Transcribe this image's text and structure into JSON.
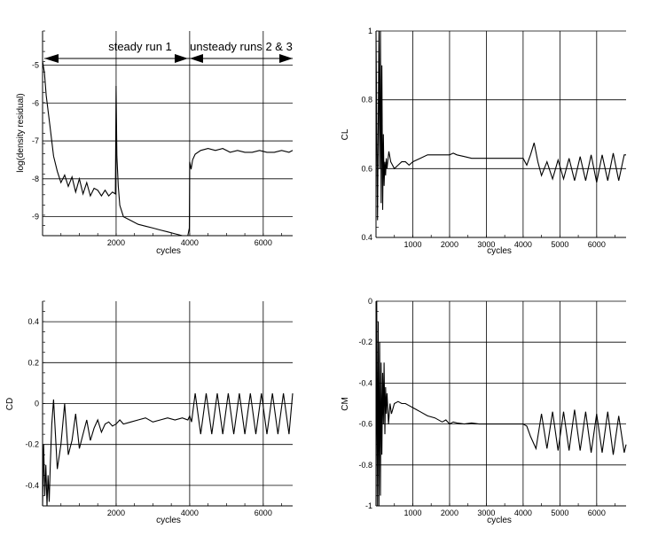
{
  "chart_data": [
    {
      "id": "residual",
      "type": "line",
      "xlabel": "cycles",
      "ylabel": "log(density residual)",
      "xlim": [
        0,
        6800
      ],
      "ylim": [
        -9.5,
        -4.1
      ],
      "xticks": [
        2000,
        4000,
        6000
      ],
      "yticks": [
        -5,
        -6,
        -7,
        -8,
        -9
      ],
      "grid": true,
      "annotations": [
        "steady run 1",
        "unsteady runs 2 & 3"
      ],
      "series": [
        {
          "x": [
            0,
            50,
            100,
            200,
            300,
            400,
            500,
            600,
            700,
            800,
            900,
            1000,
            1100,
            1200,
            1300,
            1400,
            1500,
            1600,
            1700,
            1800,
            1900,
            1980,
            2000,
            2020,
            2060,
            2100,
            2200,
            2400,
            2600,
            2800,
            3000,
            3200,
            3400,
            3600,
            3800,
            3950,
            3990,
            4000,
            4040,
            4080,
            4150,
            4300,
            4500,
            4700,
            4900,
            5100,
            5300,
            5500,
            5700,
            5900,
            6100,
            6300,
            6500,
            6700,
            6800
          ],
          "y": [
            -4.9,
            -5.2,
            -5.8,
            -6.6,
            -7.4,
            -7.8,
            -8.1,
            -7.9,
            -8.2,
            -7.95,
            -8.35,
            -8.0,
            -8.4,
            -8.1,
            -8.45,
            -8.25,
            -8.3,
            -8.45,
            -8.3,
            -8.45,
            -8.35,
            -8.4,
            -5.55,
            -7.4,
            -8.2,
            -8.7,
            -9.0,
            -9.1,
            -9.2,
            -9.25,
            -9.3,
            -9.35,
            -9.4,
            -9.45,
            -9.5,
            -9.5,
            -9.3,
            -7.55,
            -7.75,
            -7.5,
            -7.35,
            -7.25,
            -7.2,
            -7.25,
            -7.2,
            -7.3,
            -7.25,
            -7.3,
            -7.3,
            -7.25,
            -7.3,
            -7.3,
            -7.25,
            -7.3,
            -7.25
          ]
        }
      ]
    },
    {
      "id": "cl",
      "type": "line",
      "xlabel": "cycles",
      "ylabel": "CL",
      "xlim": [
        0,
        6800
      ],
      "ylim": [
        0.4,
        1.0
      ],
      "xticks": [
        1000,
        2000,
        3000,
        4000,
        5000,
        6000
      ],
      "yticks": [
        0.4,
        0.6,
        0.8,
        1.0
      ],
      "ytick_labels": [
        "0.4",
        "0.6",
        "0.8",
        "1"
      ],
      "grid": true,
      "series": [
        {
          "x": [
            0,
            40,
            80,
            100,
            120,
            140,
            160,
            180,
            200,
            220,
            240,
            260,
            280,
            300,
            350,
            400,
            500,
            600,
            700,
            800,
            900,
            1000,
            1200,
            1400,
            1600,
            1800,
            2000,
            2100,
            2200,
            2400,
            2600,
            2800,
            3000,
            3200,
            3400,
            3600,
            3800,
            4000,
            4100,
            4200,
            4300,
            4400,
            4500,
            4650,
            4800,
            4950,
            5100,
            5250,
            5400,
            5550,
            5700,
            5850,
            6000,
            6150,
            6300,
            6450,
            6600,
            6750,
            6800
          ],
          "y": [
            1.0,
            0.45,
            1.0,
            0.6,
            1.0,
            0.5,
            0.9,
            0.48,
            0.7,
            0.55,
            0.62,
            0.58,
            0.63,
            0.6,
            0.65,
            0.62,
            0.6,
            0.61,
            0.62,
            0.62,
            0.61,
            0.62,
            0.63,
            0.64,
            0.64,
            0.64,
            0.64,
            0.645,
            0.64,
            0.635,
            0.63,
            0.63,
            0.63,
            0.63,
            0.63,
            0.63,
            0.63,
            0.63,
            0.61,
            0.64,
            0.675,
            0.62,
            0.58,
            0.62,
            0.57,
            0.625,
            0.57,
            0.63,
            0.565,
            0.635,
            0.565,
            0.64,
            0.56,
            0.64,
            0.565,
            0.645,
            0.565,
            0.64,
            0.64
          ]
        }
      ]
    },
    {
      "id": "cd",
      "type": "line",
      "xlabel": "cycles",
      "ylabel": "CD",
      "xlim": [
        0,
        6800
      ],
      "ylim": [
        -0.5,
        0.5
      ],
      "xticks": [
        2000,
        4000,
        6000
      ],
      "yticks": [
        -0.4,
        -0.2,
        0,
        0.2,
        0.4
      ],
      "ytick_labels": [
        "-0.4",
        "-0.2",
        "0",
        "0.2",
        "0.4"
      ],
      "grid": true,
      "series": [
        {
          "x": [
            0,
            30,
            60,
            90,
            120,
            150,
            180,
            210,
            250,
            300,
            350,
            400,
            500,
            600,
            700,
            800,
            900,
            1000,
            1100,
            1200,
            1300,
            1400,
            1500,
            1600,
            1700,
            1800,
            1900,
            2000,
            2100,
            2200,
            2400,
            2600,
            2800,
            3000,
            3200,
            3400,
            3600,
            3800,
            3950,
            4000,
            4050,
            4150,
            4300,
            4450,
            4600,
            4750,
            4900,
            5050,
            5200,
            5350,
            5500,
            5650,
            5800,
            5950,
            6100,
            6250,
            6400,
            6550,
            6700,
            6800
          ],
          "y": [
            -0.5,
            -0.2,
            -0.45,
            -0.3,
            -0.5,
            -0.35,
            -0.48,
            -0.3,
            -0.1,
            0.02,
            -0.15,
            -0.32,
            -0.2,
            0.0,
            -0.25,
            -0.18,
            -0.05,
            -0.22,
            -0.15,
            -0.08,
            -0.18,
            -0.12,
            -0.08,
            -0.14,
            -0.1,
            -0.09,
            -0.11,
            -0.1,
            -0.08,
            -0.1,
            -0.09,
            -0.08,
            -0.07,
            -0.09,
            -0.08,
            -0.07,
            -0.08,
            -0.07,
            -0.08,
            -0.06,
            -0.09,
            0.05,
            -0.15,
            0.05,
            -0.15,
            0.05,
            -0.15,
            0.05,
            -0.15,
            0.05,
            -0.15,
            0.05,
            -0.15,
            0.05,
            -0.15,
            0.05,
            -0.15,
            0.05,
            -0.15,
            0.05
          ]
        }
      ]
    },
    {
      "id": "cm",
      "type": "line",
      "xlabel": "cycles",
      "ylabel": "CM",
      "xlim": [
        0,
        6800
      ],
      "ylim": [
        -1.0,
        0.0
      ],
      "xticks": [
        1000,
        2000,
        3000,
        4000,
        5000,
        6000
      ],
      "yticks": [
        -1,
        -0.8,
        -0.6,
        -0.4,
        -0.2,
        0
      ],
      "ytick_labels": [
        "-1",
        "-0.8",
        "-0.6",
        "-0.4",
        "-0.2",
        "0"
      ],
      "grid": true,
      "series": [
        {
          "x": [
            0,
            20,
            40,
            60,
            80,
            100,
            120,
            140,
            160,
            180,
            200,
            220,
            240,
            260,
            280,
            300,
            340,
            380,
            420,
            500,
            600,
            700,
            800,
            900,
            1000,
            1100,
            1200,
            1400,
            1600,
            1800,
            1900,
            2000,
            2100,
            2200,
            2400,
            2600,
            2800,
            3000,
            3200,
            3400,
            3600,
            3800,
            4000,
            4100,
            4200,
            4350,
            4500,
            4650,
            4800,
            4950,
            5100,
            5250,
            5400,
            5550,
            5700,
            5850,
            6000,
            6150,
            6300,
            6450,
            6600,
            6750,
            6800
          ],
          "y": [
            -1.0,
            0.0,
            -1.0,
            -0.1,
            -1.0,
            -0.2,
            -0.95,
            -0.3,
            -0.75,
            -0.35,
            -0.6,
            -0.3,
            -0.65,
            -0.42,
            -0.55,
            -0.45,
            -0.6,
            -0.5,
            -0.55,
            -0.5,
            -0.49,
            -0.5,
            -0.5,
            -0.51,
            -0.52,
            -0.53,
            -0.54,
            -0.56,
            -0.57,
            -0.59,
            -0.58,
            -0.6,
            -0.59,
            -0.595,
            -0.6,
            -0.595,
            -0.6,
            -0.6,
            -0.6,
            -0.6,
            -0.6,
            -0.6,
            -0.6,
            -0.61,
            -0.66,
            -0.72,
            -0.55,
            -0.72,
            -0.54,
            -0.73,
            -0.54,
            -0.73,
            -0.53,
            -0.73,
            -0.54,
            -0.74,
            -0.55,
            -0.74,
            -0.54,
            -0.75,
            -0.56,
            -0.74,
            -0.7
          ]
        }
      ]
    }
  ]
}
